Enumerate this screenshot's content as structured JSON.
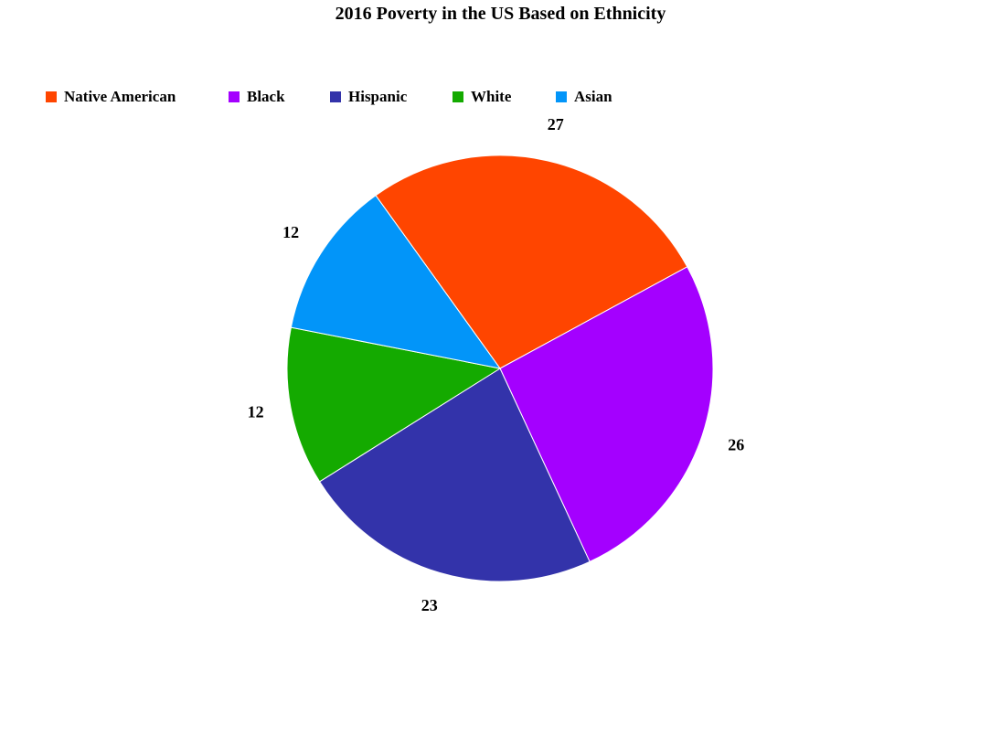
{
  "chart_data": {
    "type": "pie",
    "title": "2016 Poverty in the US Based on Ethnicity",
    "legend_position": "top-left",
    "slices": [
      {
        "label": "Native American",
        "value": 27,
        "color": "#ff4500"
      },
      {
        "label": "Black",
        "value": 26,
        "color": "#a400ff"
      },
      {
        "label": "Hispanic",
        "value": 23,
        "color": "#3333aa"
      },
      {
        "label": "White",
        "value": 12,
        "color": "#14aa00"
      },
      {
        "label": "Asian",
        "value": 12,
        "color": "#0295f9"
      }
    ]
  }
}
